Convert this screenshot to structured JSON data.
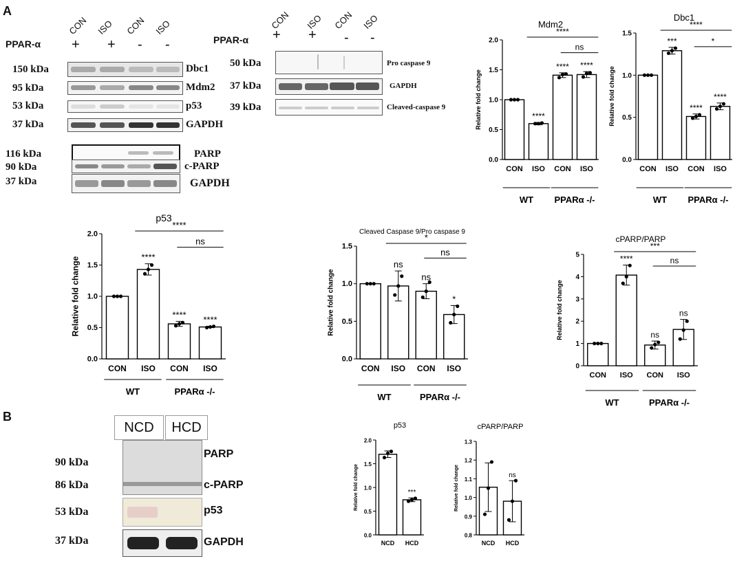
{
  "panel_a": {
    "letter": "A",
    "blot1": {
      "lanes": [
        "CON",
        "ISO",
        "CON",
        "ISO"
      ],
      "ppar_label": "PPAR-α",
      "ppar_signs": [
        "+",
        "+",
        "-",
        "-"
      ],
      "rows": [
        {
          "kda": "150 kDa",
          "protein": "Dbc1"
        },
        {
          "kda": "95 kDa",
          "protein": "Mdm2"
        },
        {
          "kda": "53 kDa",
          "protein": "p53"
        },
        {
          "kda": "37 kDa",
          "protein": "GAPDH"
        }
      ],
      "rows2": [
        {
          "kda": "116 kDa",
          "protein": "PARP"
        },
        {
          "kda": "90 kDa",
          "protein": "c-PARP"
        },
        {
          "kda": "37 kDa",
          "protein": "GAPDH"
        }
      ]
    },
    "blot2": {
      "lanes": [
        "CON",
        "ISO",
        "CON",
        "ISO"
      ],
      "ppar_label": "PPAR-α",
      "ppar_signs": [
        "+",
        "+",
        "-",
        "-"
      ],
      "rows": [
        {
          "kda": "50 kDa",
          "protein": "Pro caspase 9"
        },
        {
          "kda": "37 kDa",
          "protein": "GAPDH"
        },
        {
          "kda": "39 kDa",
          "protein": "Cleaved-caspase 9"
        }
      ]
    }
  },
  "panel_b": {
    "letter": "B",
    "lanes": [
      "NCD",
      "HCD"
    ],
    "rows": [
      {
        "kda": "90 kDa",
        "protein": "PARP"
      },
      {
        "kda": "86 kDa",
        "protein": "c-PARP"
      },
      {
        "kda": "53 kDa",
        "protein": "p53"
      },
      {
        "kda": "37 kDa",
        "protein": "GAPDH"
      }
    ]
  },
  "chart_data": [
    {
      "id": "mdm2",
      "type": "bar",
      "title": "Mdm2",
      "ylabel": "Relative fold change",
      "ylim": [
        0,
        2.0
      ],
      "yticks": [
        "0.0",
        "0.5",
        "1.0",
        "1.5",
        "2.0"
      ],
      "categories": [
        "CON",
        "ISO",
        "CON",
        "ISO"
      ],
      "values": [
        1.0,
        0.6,
        1.41,
        1.42
      ],
      "errors": [
        0,
        0.02,
        0.04,
        0.05
      ],
      "points": [
        [
          1,
          1,
          1
        ],
        [
          0.6,
          0.6,
          0.61
        ],
        [
          1.37,
          1.42,
          1.43
        ],
        [
          1.38,
          1.44,
          1.45
        ]
      ],
      "stars": [
        "",
        "****",
        "****",
        "****"
      ],
      "groups": [
        "WT",
        "PPARα -/-"
      ],
      "comparisons": [
        {
          "from": 1,
          "to": 3,
          "label": "****"
        },
        {
          "from": 2,
          "to": 3,
          "label": "ns"
        }
      ]
    },
    {
      "id": "dbc1",
      "type": "bar",
      "title": "Dbc1",
      "ylabel": "Relative fold change",
      "ylim": [
        0,
        1.5
      ],
      "yticks": [
        "0.0",
        "0.5",
        "1.0",
        "1.5"
      ],
      "categories": [
        "CON",
        "ISO",
        "CON",
        "ISO"
      ],
      "values": [
        1.0,
        1.29,
        0.51,
        0.63
      ],
      "errors": [
        0,
        0.04,
        0.03,
        0.04
      ],
      "points": [
        [
          1,
          1,
          1
        ],
        [
          1.26,
          1.29,
          1.32
        ],
        [
          0.49,
          0.51,
          0.53
        ],
        [
          0.6,
          0.63,
          0.66
        ]
      ],
      "stars": [
        "",
        "***",
        "****",
        "****"
      ],
      "groups": [
        "WT",
        "PPARα -/-"
      ],
      "comparisons": [
        {
          "from": 1,
          "to": 3,
          "label": "****"
        },
        {
          "from": 2,
          "to": 3,
          "label": "*"
        }
      ]
    },
    {
      "id": "p53",
      "type": "bar",
      "title": "p53",
      "ylabel": "Relative fold change",
      "ylim": [
        0,
        2.0
      ],
      "yticks": [
        "0.0",
        "0.5",
        "1.0",
        "1.5",
        "2.0"
      ],
      "categories": [
        "CON",
        "ISO",
        "CON",
        "ISO"
      ],
      "values": [
        1.0,
        1.43,
        0.56,
        0.51
      ],
      "errors": [
        0,
        0.09,
        0.04,
        0.01
      ],
      "points": [
        [
          1,
          1,
          1
        ],
        [
          1.36,
          1.43,
          1.5
        ],
        [
          0.53,
          0.56,
          0.58
        ],
        [
          0.5,
          0.51,
          0.52
        ]
      ],
      "stars": [
        "",
        "****",
        "****",
        "****"
      ],
      "groups": [
        "WT",
        "PPARα -/-"
      ],
      "comparisons": [
        {
          "from": 1,
          "to": 3,
          "label": "****"
        },
        {
          "from": 2,
          "to": 3,
          "label": "ns"
        }
      ]
    },
    {
      "id": "casp9",
      "type": "bar",
      "title": "Cleaved Caspase 9/Pro caspase 9",
      "ylabel": "Relative fold change",
      "ylim": [
        0,
        1.5
      ],
      "yticks": [
        "0.0",
        "0.5",
        "1.0",
        "1.5"
      ],
      "categories": [
        "CON",
        "ISO",
        "CON",
        "ISO"
      ],
      "values": [
        1.0,
        0.97,
        0.9,
        0.59
      ],
      "errors": [
        0,
        0.2,
        0.1,
        0.12
      ],
      "points": [
        [
          1,
          1,
          1
        ],
        [
          0.85,
          0.97,
          1.1
        ],
        [
          0.82,
          0.9,
          1.02
        ],
        [
          0.48,
          0.59,
          0.7
        ]
      ],
      "stars": [
        "",
        "ns",
        "ns",
        "*"
      ],
      "groups": [
        "WT",
        "PPARα -/-"
      ],
      "comparisons": [
        {
          "from": 1,
          "to": 3,
          "label": "*"
        },
        {
          "from": 2,
          "to": 3,
          "label": "ns"
        }
      ]
    },
    {
      "id": "cparp",
      "type": "bar",
      "title": "cPARP/PARP",
      "ylabel": "Relative fold change",
      "ylim": [
        0,
        5
      ],
      "yticks": [
        "0",
        "1",
        "2",
        "3",
        "4",
        "5"
      ],
      "categories": [
        "CON",
        "ISO",
        "CON",
        "ISO"
      ],
      "values": [
        1.0,
        4.07,
        0.93,
        1.63
      ],
      "errors": [
        0,
        0.45,
        0.18,
        0.45
      ],
      "points": [
        [
          1,
          1,
          1
        ],
        [
          3.7,
          4.0,
          4.5
        ],
        [
          0.8,
          0.95,
          1.05
        ],
        [
          1.2,
          1.6,
          2.0
        ]
      ],
      "stars": [
        "",
        "****",
        "ns",
        "ns"
      ],
      "groups": [
        "WT",
        "PPARα -/-"
      ],
      "comparisons": [
        {
          "from": 1,
          "to": 3,
          "label": "***"
        },
        {
          "from": 2,
          "to": 3,
          "label": "ns"
        }
      ]
    },
    {
      "id": "p53b",
      "type": "bar",
      "title": "p53",
      "ylabel": "Relative fold change",
      "ylim": [
        0,
        2.0
      ],
      "yticks": [
        "0.0",
        "0.5",
        "1.0",
        "1.5",
        "2.0"
      ],
      "categories": [
        "NCD",
        "HCD"
      ],
      "values": [
        1.7,
        0.74
      ],
      "errors": [
        0.07,
        0.04
      ],
      "points": [
        [
          1.63,
          1.72,
          1.76
        ],
        [
          0.71,
          0.74,
          0.77
        ]
      ],
      "stars": [
        "",
        "***"
      ],
      "groups": [],
      "comparisons": []
    },
    {
      "id": "cparpb",
      "type": "bar",
      "title": "cPARP/PARP",
      "ylabel": "Relative fold change",
      "ylim": [
        0.8,
        1.3
      ],
      "yticks": [
        "0.8",
        "0.9",
        "1.0",
        "1.1",
        "1.2",
        "1.3"
      ],
      "categories": [
        "NCD",
        "HCD"
      ],
      "values": [
        1.055,
        0.98
      ],
      "errors": [
        0.13,
        0.11
      ],
      "points": [
        [
          0.91,
          1.05,
          1.19
        ],
        [
          0.88,
          0.98,
          1.09
        ]
      ],
      "stars": [
        "",
        "ns"
      ],
      "groups": [],
      "comparisons": []
    }
  ]
}
